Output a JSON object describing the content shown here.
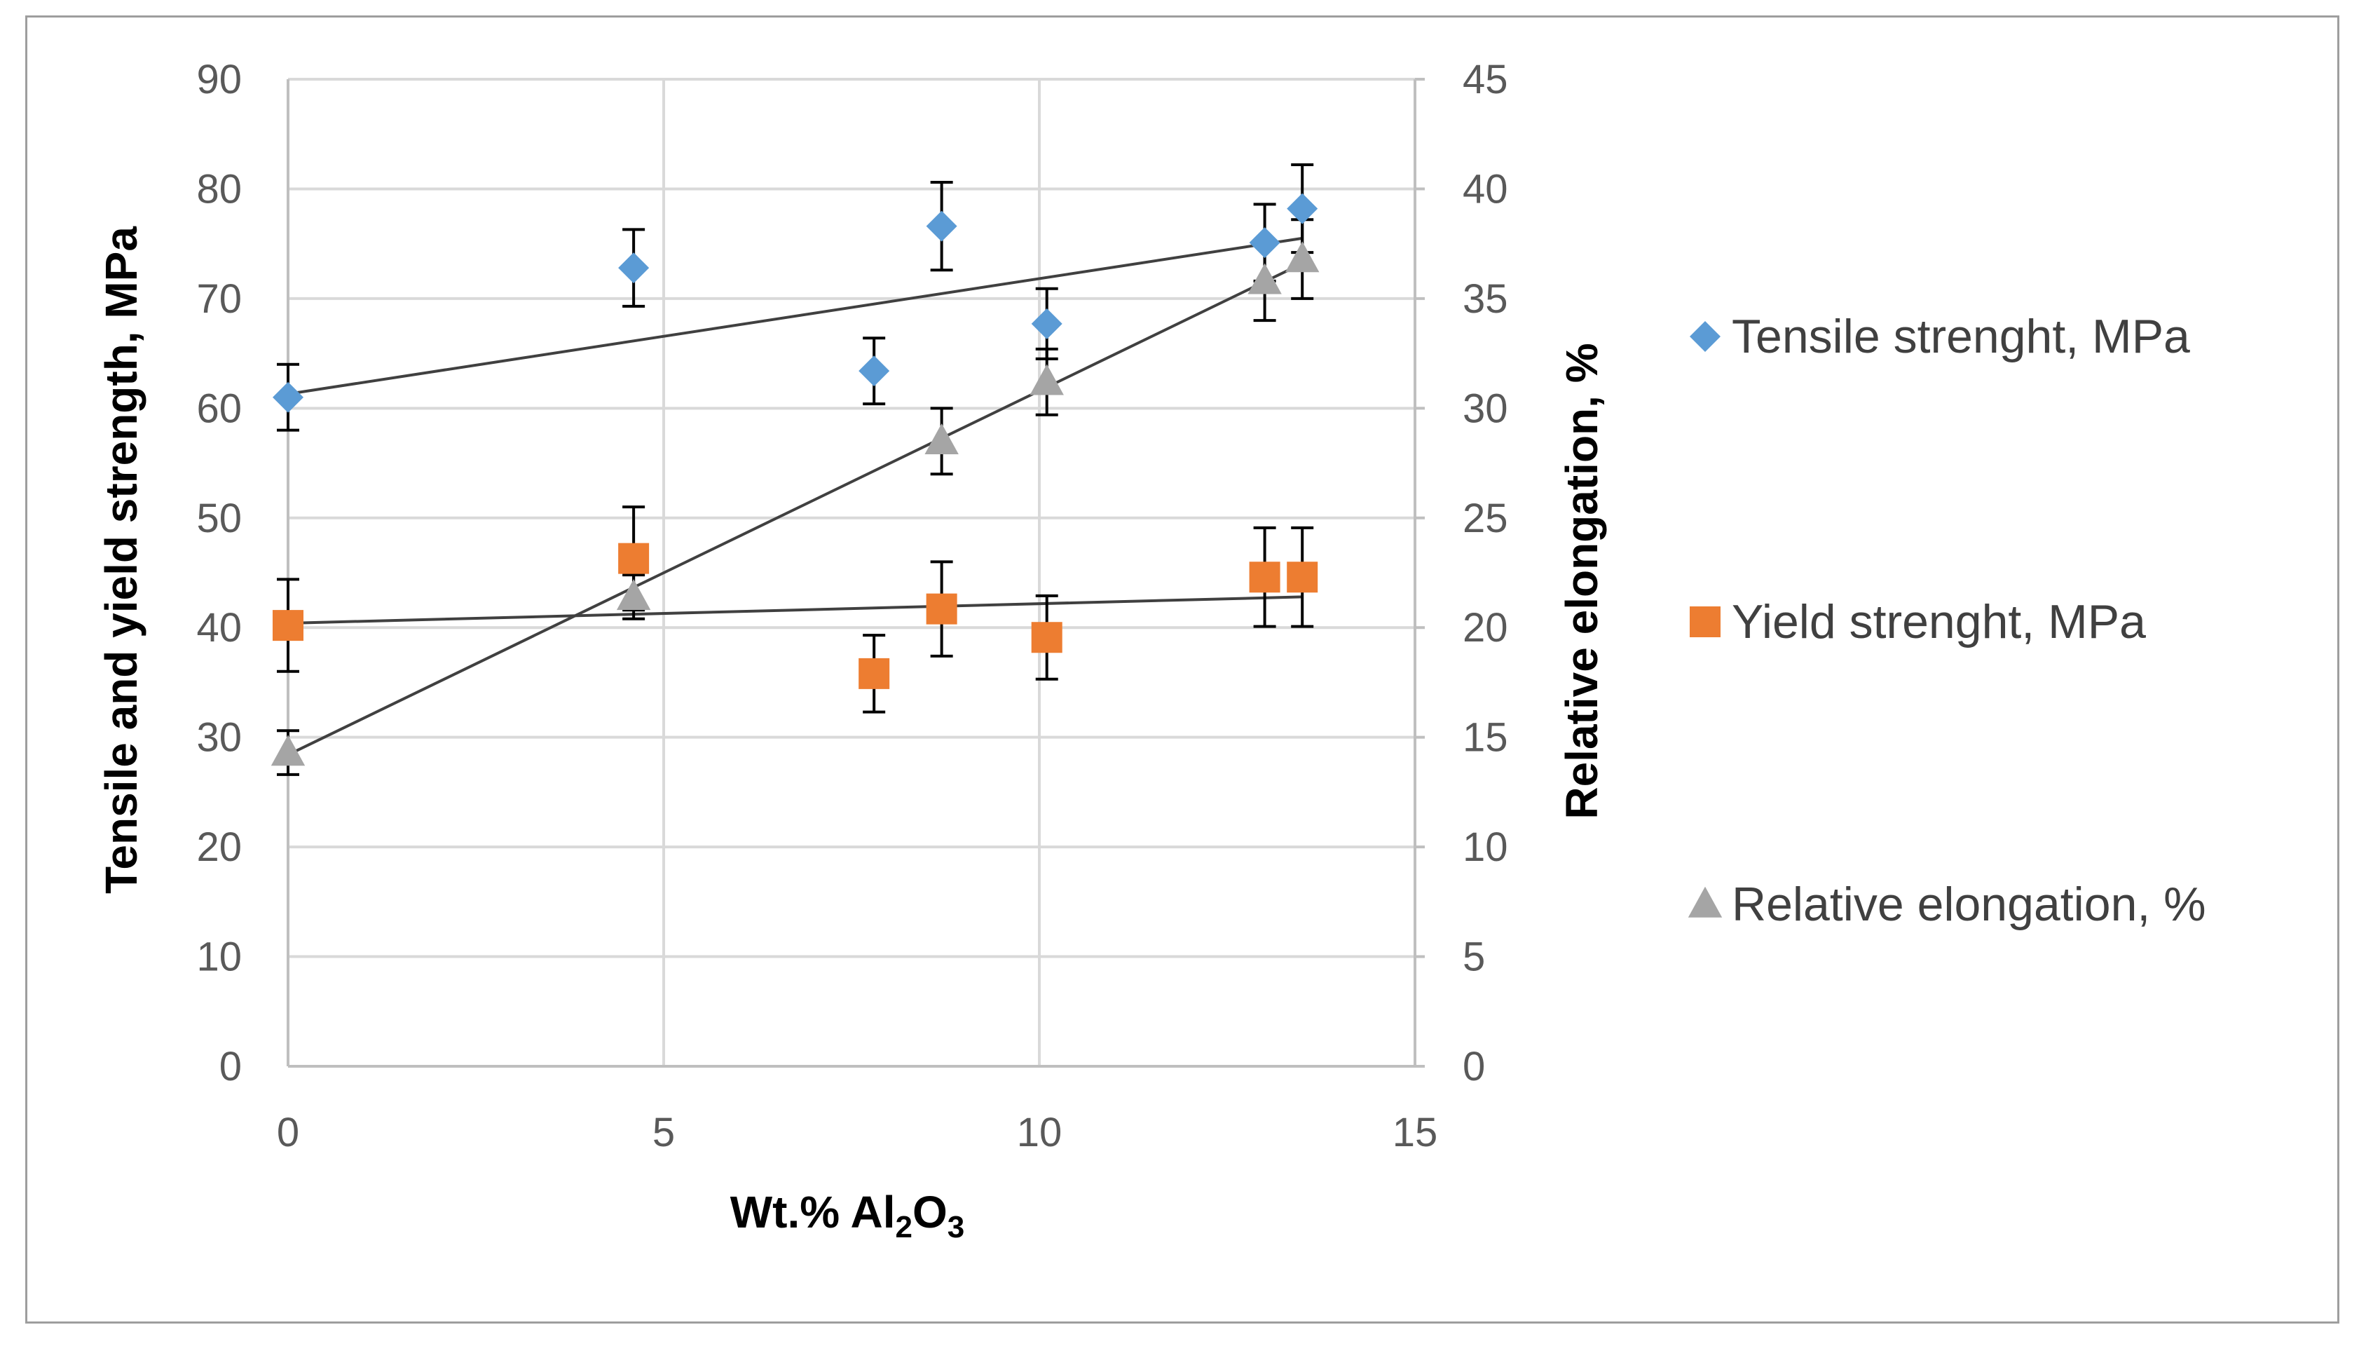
{
  "chart_data": {
    "type": "scatter",
    "xlabel_prefix": "Wt.% Al",
    "xlabel_sub1": "2",
    "xlabel_mid": "O",
    "xlabel_sub2": "3",
    "ylabel_left": "Tensile and yield strength, MPa",
    "ylabel_right": "Relative elongation, %",
    "xlim": [
      0,
      15
    ],
    "ylim_left": [
      0,
      90
    ],
    "ylim_right": [
      0,
      45
    ],
    "xticks": [
      0,
      5,
      10,
      15
    ],
    "yticks_left": [
      0,
      10,
      20,
      30,
      40,
      50,
      60,
      70,
      80,
      90
    ],
    "yticks_right": [
      0,
      5,
      10,
      15,
      20,
      25,
      30,
      35,
      40,
      45
    ],
    "grid": true,
    "legend_position": "right",
    "series": [
      {
        "name": "Tensile strenght, MPa",
        "axis": "left",
        "marker": "diamond",
        "color": "#5B9BD5",
        "x": [
          0,
          4.6,
          7.8,
          8.7,
          10.1,
          13.0,
          13.5
        ],
        "y": [
          61,
          72.8,
          63.4,
          76.6,
          67.7,
          75.1,
          78.2
        ],
        "err": [
          3,
          3.5,
          3,
          4,
          3.2,
          3.5,
          4
        ],
        "trend": [
          61.3,
          75.5
        ]
      },
      {
        "name": "Yield strenght, MPa",
        "axis": "left",
        "marker": "square",
        "color": "#ED7D31",
        "x": [
          0,
          4.6,
          7.8,
          8.7,
          10.1,
          13.0,
          13.5
        ],
        "y": [
          40.2,
          46.3,
          35.8,
          41.7,
          39.1,
          44.6,
          44.6
        ],
        "err": [
          4.2,
          4.7,
          3.5,
          4.3,
          3.8,
          4.5,
          4.5
        ],
        "trend": [
          40.4,
          42.8
        ]
      },
      {
        "name": "Relative elongation, %",
        "axis": "right",
        "marker": "triangle",
        "color": "#A5A5A5",
        "x": [
          0,
          4.6,
          8.7,
          10.1,
          13.0,
          13.5
        ],
        "y": [
          14.3,
          21.4,
          28.5,
          31.2,
          35.8,
          36.8
        ],
        "err": [
          1,
          1,
          1.5,
          1.5,
          1.8,
          1.8
        ],
        "trend": [
          14.2,
          36.6
        ]
      }
    ]
  }
}
